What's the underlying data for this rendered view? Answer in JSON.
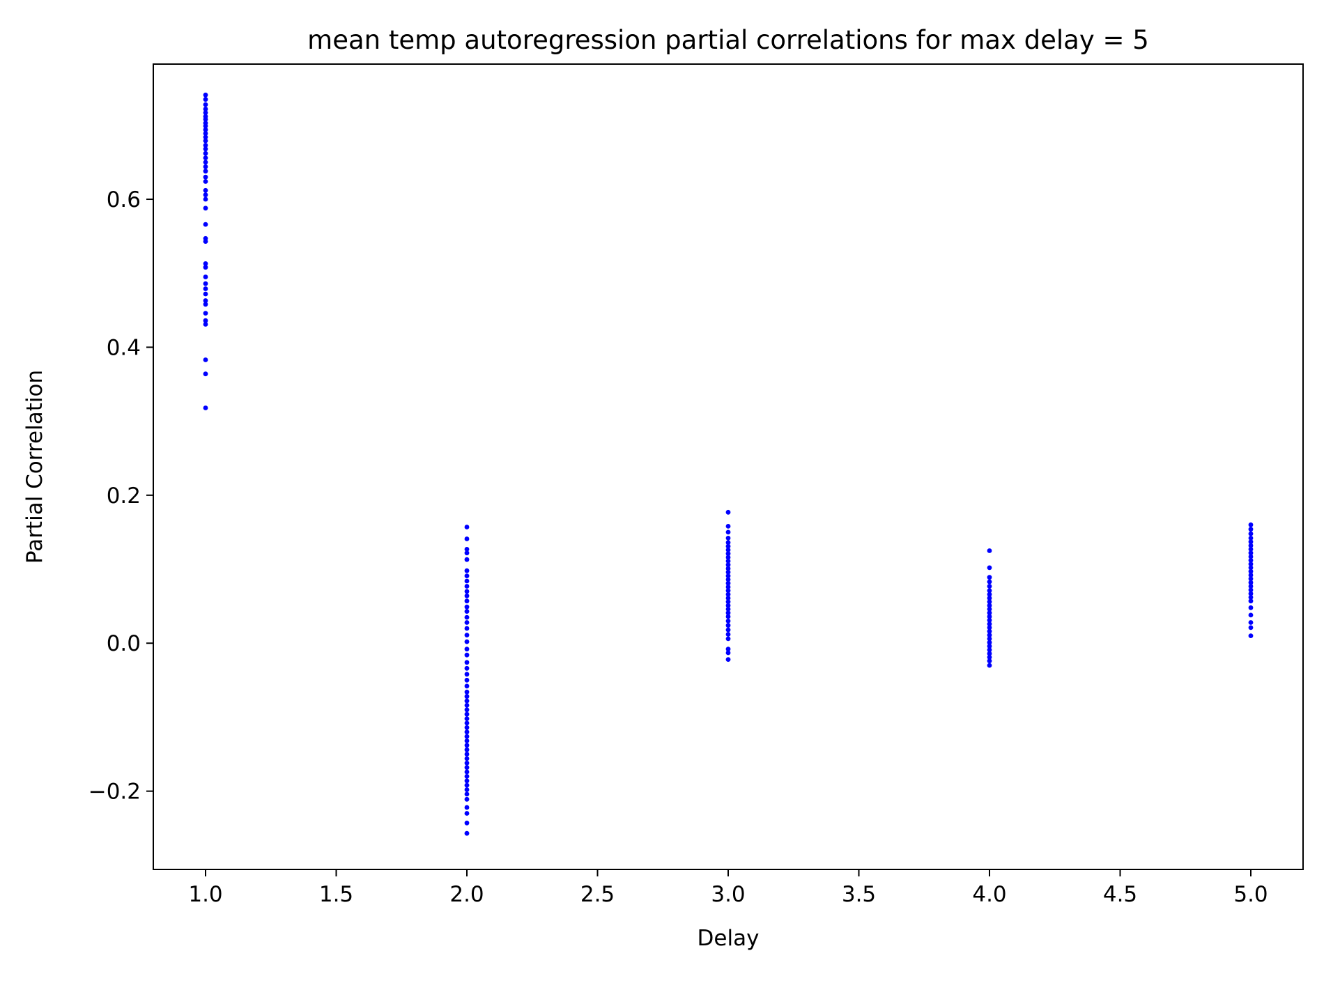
{
  "chart_data": {
    "type": "scatter",
    "title": "mean temp autoregression partial correlations for max delay = 5",
    "xlabel": "Delay",
    "ylabel": "Partial Correlation",
    "xlim": [
      0.8,
      5.2
    ],
    "ylim": [
      -0.3058,
      0.7827
    ],
    "xticks": [
      1.0,
      1.5,
      2.0,
      2.5,
      3.0,
      3.5,
      4.0,
      4.5,
      5.0
    ],
    "xtick_labels": [
      "1.0",
      "1.5",
      "2.0",
      "2.5",
      "3.0",
      "3.5",
      "4.0",
      "4.5",
      "5.0"
    ],
    "yticks": [
      -0.2,
      0.0,
      0.2,
      0.4,
      0.6
    ],
    "ytick_labels": [
      "−0.2",
      "0.0",
      "0.2",
      "0.4",
      "0.6"
    ],
    "grid": false,
    "legend": "none",
    "marker_color": "#0000ff",
    "points": [
      {
        "x": 1,
        "y": 0.741
      },
      {
        "x": 1,
        "y": 0.735
      },
      {
        "x": 1,
        "y": 0.728
      },
      {
        "x": 1,
        "y": 0.722
      },
      {
        "x": 1,
        "y": 0.717
      },
      {
        "x": 1,
        "y": 0.712
      },
      {
        "x": 1,
        "y": 0.708
      },
      {
        "x": 1,
        "y": 0.703
      },
      {
        "x": 1,
        "y": 0.699
      },
      {
        "x": 1,
        "y": 0.694
      },
      {
        "x": 1,
        "y": 0.689
      },
      {
        "x": 1,
        "y": 0.684
      },
      {
        "x": 1,
        "y": 0.679
      },
      {
        "x": 1,
        "y": 0.673
      },
      {
        "x": 1,
        "y": 0.668
      },
      {
        "x": 1,
        "y": 0.662
      },
      {
        "x": 1,
        "y": 0.656
      },
      {
        "x": 1,
        "y": 0.65
      },
      {
        "x": 1,
        "y": 0.644
      },
      {
        "x": 1,
        "y": 0.638
      },
      {
        "x": 1,
        "y": 0.63
      },
      {
        "x": 1,
        "y": 0.624
      },
      {
        "x": 1,
        "y": 0.612
      },
      {
        "x": 1,
        "y": 0.606
      },
      {
        "x": 1,
        "y": 0.6
      },
      {
        "x": 1,
        "y": 0.588
      },
      {
        "x": 1,
        "y": 0.566
      },
      {
        "x": 1,
        "y": 0.547
      },
      {
        "x": 1,
        "y": 0.543
      },
      {
        "x": 1,
        "y": 0.513
      },
      {
        "x": 1,
        "y": 0.508
      },
      {
        "x": 1,
        "y": 0.495
      },
      {
        "x": 1,
        "y": 0.486
      },
      {
        "x": 1,
        "y": 0.479
      },
      {
        "x": 1,
        "y": 0.472
      },
      {
        "x": 1,
        "y": 0.463
      },
      {
        "x": 1,
        "y": 0.458
      },
      {
        "x": 1,
        "y": 0.446
      },
      {
        "x": 1,
        "y": 0.436
      },
      {
        "x": 1,
        "y": 0.431
      },
      {
        "x": 1,
        "y": 0.383
      },
      {
        "x": 1,
        "y": 0.364
      },
      {
        "x": 1,
        "y": 0.318
      },
      {
        "x": 2,
        "y": 0.157
      },
      {
        "x": 2,
        "y": 0.141
      },
      {
        "x": 2,
        "y": 0.127
      },
      {
        "x": 2,
        "y": 0.122
      },
      {
        "x": 2,
        "y": 0.113
      },
      {
        "x": 2,
        "y": 0.098
      },
      {
        "x": 2,
        "y": 0.091
      },
      {
        "x": 2,
        "y": 0.084
      },
      {
        "x": 2,
        "y": 0.077
      },
      {
        "x": 2,
        "y": 0.07
      },
      {
        "x": 2,
        "y": 0.064
      },
      {
        "x": 2,
        "y": 0.057
      },
      {
        "x": 2,
        "y": 0.049
      },
      {
        "x": 2,
        "y": 0.043
      },
      {
        "x": 2,
        "y": 0.035
      },
      {
        "x": 2,
        "y": 0.028
      },
      {
        "x": 2,
        "y": 0.02
      },
      {
        "x": 2,
        "y": 0.011
      },
      {
        "x": 2,
        "y": 0.002
      },
      {
        "x": 2,
        "y": -0.008
      },
      {
        "x": 2,
        "y": -0.016
      },
      {
        "x": 2,
        "y": -0.026
      },
      {
        "x": 2,
        "y": -0.034
      },
      {
        "x": 2,
        "y": -0.042
      },
      {
        "x": 2,
        "y": -0.05
      },
      {
        "x": 2,
        "y": -0.058
      },
      {
        "x": 2,
        "y": -0.066
      },
      {
        "x": 2,
        "y": -0.072
      },
      {
        "x": 2,
        "y": -0.078
      },
      {
        "x": 2,
        "y": -0.084
      },
      {
        "x": 2,
        "y": -0.09
      },
      {
        "x": 2,
        "y": -0.096
      },
      {
        "x": 2,
        "y": -0.102
      },
      {
        "x": 2,
        "y": -0.108
      },
      {
        "x": 2,
        "y": -0.114
      },
      {
        "x": 2,
        "y": -0.12
      },
      {
        "x": 2,
        "y": -0.126
      },
      {
        "x": 2,
        "y": -0.132
      },
      {
        "x": 2,
        "y": -0.138
      },
      {
        "x": 2,
        "y": -0.144
      },
      {
        "x": 2,
        "y": -0.15
      },
      {
        "x": 2,
        "y": -0.156
      },
      {
        "x": 2,
        "y": -0.162
      },
      {
        "x": 2,
        "y": -0.168
      },
      {
        "x": 2,
        "y": -0.174
      },
      {
        "x": 2,
        "y": -0.18
      },
      {
        "x": 2,
        "y": -0.186
      },
      {
        "x": 2,
        "y": -0.192
      },
      {
        "x": 2,
        "y": -0.198
      },
      {
        "x": 2,
        "y": -0.204
      },
      {
        "x": 2,
        "y": -0.211
      },
      {
        "x": 2,
        "y": -0.222
      },
      {
        "x": 2,
        "y": -0.23
      },
      {
        "x": 2,
        "y": -0.243
      },
      {
        "x": 2,
        "y": -0.257
      },
      {
        "x": 3,
        "y": 0.177
      },
      {
        "x": 3,
        "y": 0.158
      },
      {
        "x": 3,
        "y": 0.15
      },
      {
        "x": 3,
        "y": 0.142
      },
      {
        "x": 3,
        "y": 0.136
      },
      {
        "x": 3,
        "y": 0.131
      },
      {
        "x": 3,
        "y": 0.126
      },
      {
        "x": 3,
        "y": 0.121
      },
      {
        "x": 3,
        "y": 0.116
      },
      {
        "x": 3,
        "y": 0.111
      },
      {
        "x": 3,
        "y": 0.106
      },
      {
        "x": 3,
        "y": 0.101
      },
      {
        "x": 3,
        "y": 0.096
      },
      {
        "x": 3,
        "y": 0.091
      },
      {
        "x": 3,
        "y": 0.086
      },
      {
        "x": 3,
        "y": 0.081
      },
      {
        "x": 3,
        "y": 0.076
      },
      {
        "x": 3,
        "y": 0.071
      },
      {
        "x": 3,
        "y": 0.066
      },
      {
        "x": 3,
        "y": 0.061
      },
      {
        "x": 3,
        "y": 0.056
      },
      {
        "x": 3,
        "y": 0.051
      },
      {
        "x": 3,
        "y": 0.046
      },
      {
        "x": 3,
        "y": 0.041
      },
      {
        "x": 3,
        "y": 0.036
      },
      {
        "x": 3,
        "y": 0.03
      },
      {
        "x": 3,
        "y": 0.024
      },
      {
        "x": 3,
        "y": 0.018
      },
      {
        "x": 3,
        "y": 0.012
      },
      {
        "x": 3,
        "y": 0.006
      },
      {
        "x": 3,
        "y": -0.008
      },
      {
        "x": 3,
        "y": -0.013
      },
      {
        "x": 3,
        "y": -0.022
      },
      {
        "x": 4,
        "y": 0.125
      },
      {
        "x": 4,
        "y": 0.102
      },
      {
        "x": 4,
        "y": 0.089
      },
      {
        "x": 4,
        "y": 0.083
      },
      {
        "x": 4,
        "y": 0.077
      },
      {
        "x": 4,
        "y": 0.071
      },
      {
        "x": 4,
        "y": 0.066
      },
      {
        "x": 4,
        "y": 0.061
      },
      {
        "x": 4,
        "y": 0.056
      },
      {
        "x": 4,
        "y": 0.051
      },
      {
        "x": 4,
        "y": 0.046
      },
      {
        "x": 4,
        "y": 0.041
      },
      {
        "x": 4,
        "y": 0.036
      },
      {
        "x": 4,
        "y": 0.031
      },
      {
        "x": 4,
        "y": 0.026
      },
      {
        "x": 4,
        "y": 0.021
      },
      {
        "x": 4,
        "y": 0.016
      },
      {
        "x": 4,
        "y": 0.011
      },
      {
        "x": 4,
        "y": 0.006
      },
      {
        "x": 4,
        "y": 0.001
      },
      {
        "x": 4,
        "y": -0.004
      },
      {
        "x": 4,
        "y": -0.009
      },
      {
        "x": 4,
        "y": -0.014
      },
      {
        "x": 4,
        "y": -0.019
      },
      {
        "x": 4,
        "y": -0.024
      },
      {
        "x": 4,
        "y": -0.03
      },
      {
        "x": 5,
        "y": 0.16
      },
      {
        "x": 5,
        "y": 0.154
      },
      {
        "x": 5,
        "y": 0.148
      },
      {
        "x": 5,
        "y": 0.142
      },
      {
        "x": 5,
        "y": 0.137
      },
      {
        "x": 5,
        "y": 0.132
      },
      {
        "x": 5,
        "y": 0.127
      },
      {
        "x": 5,
        "y": 0.122
      },
      {
        "x": 5,
        "y": 0.117
      },
      {
        "x": 5,
        "y": 0.112
      },
      {
        "x": 5,
        "y": 0.107
      },
      {
        "x": 5,
        "y": 0.102
      },
      {
        "x": 5,
        "y": 0.097
      },
      {
        "x": 5,
        "y": 0.092
      },
      {
        "x": 5,
        "y": 0.087
      },
      {
        "x": 5,
        "y": 0.082
      },
      {
        "x": 5,
        "y": 0.077
      },
      {
        "x": 5,
        "y": 0.072
      },
      {
        "x": 5,
        "y": 0.067
      },
      {
        "x": 5,
        "y": 0.062
      },
      {
        "x": 5,
        "y": 0.057
      },
      {
        "x": 5,
        "y": 0.048
      },
      {
        "x": 5,
        "y": 0.038
      },
      {
        "x": 5,
        "y": 0.028
      },
      {
        "x": 5,
        "y": 0.021
      },
      {
        "x": 5,
        "y": 0.01
      }
    ]
  }
}
